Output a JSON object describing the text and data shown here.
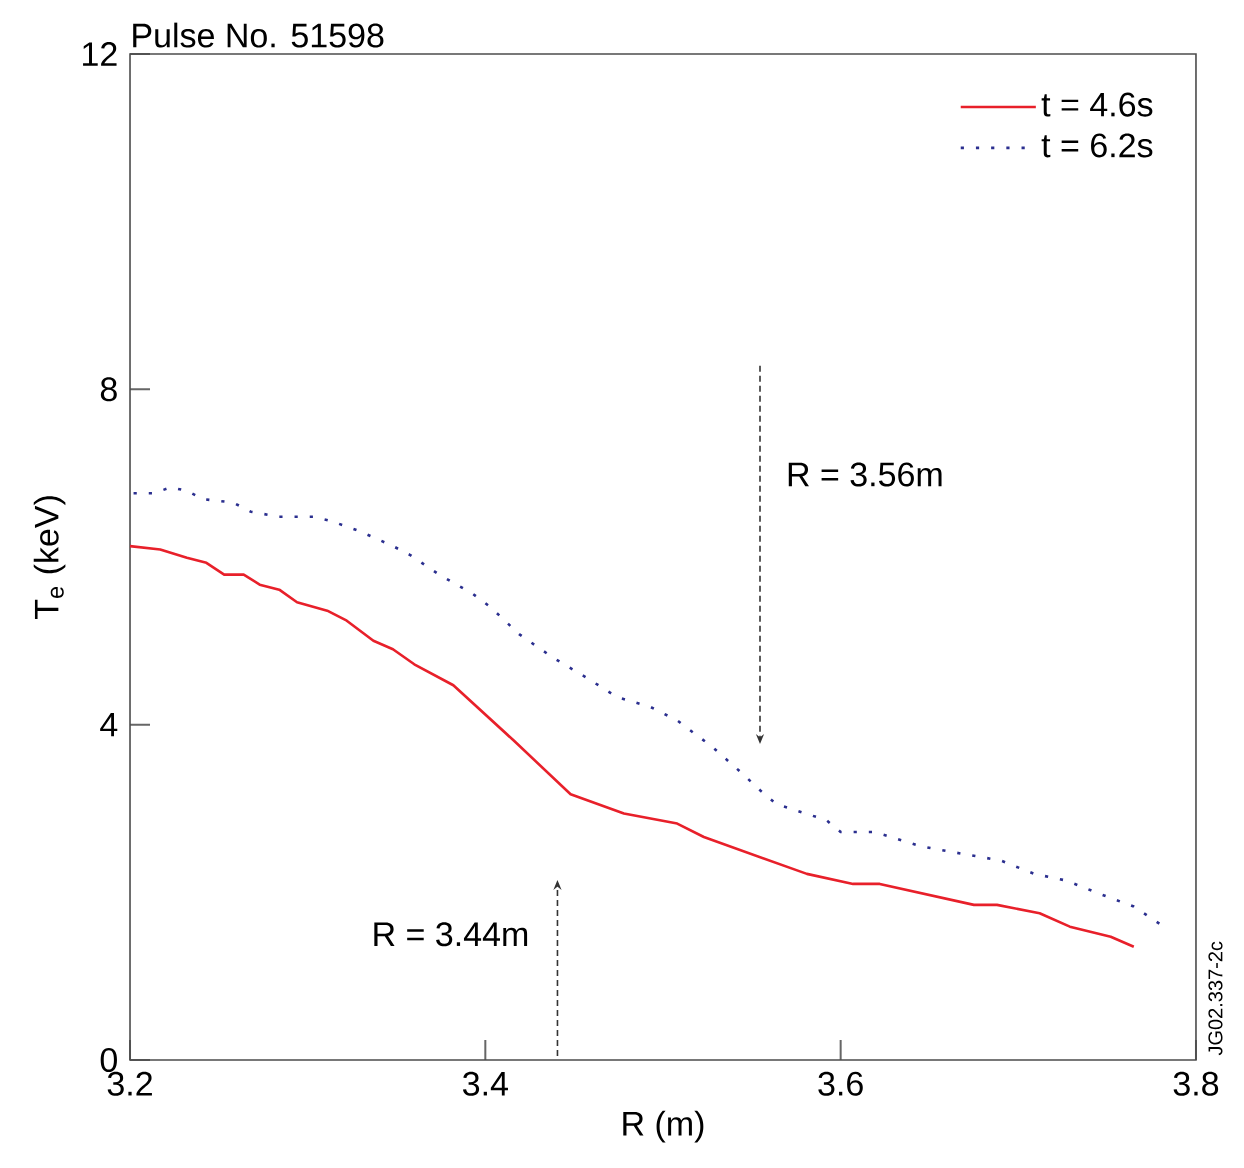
{
  "chart_data": {
    "type": "line",
    "title": "Pulse No. 51598",
    "xlabel": "R (m)",
    "ylabel": "T$_{e}$ (keV)",
    "xlim": [
      3.2,
      3.8
    ],
    "ylim": [
      0,
      12
    ],
    "xticks": [
      3.2,
      3.4,
      3.6,
      3.8
    ],
    "yticks": [
      0,
      4,
      8,
      12
    ],
    "grid": false,
    "legend": "top right",
    "marker": "none",
    "series": [
      {
        "name": "t = 4.6s",
        "color": "#e8202a",
        "line_style": "solid",
        "x": [
          3.2,
          3.217,
          3.232,
          3.243,
          3.253,
          3.264,
          3.273,
          3.284,
          3.294,
          3.311,
          3.322,
          3.337,
          3.348,
          3.36,
          3.382,
          3.416,
          3.448,
          3.478,
          3.508,
          3.523,
          3.581,
          3.607,
          3.622,
          3.675,
          3.688,
          3.712,
          3.729,
          3.752,
          3.765
        ],
        "values": [
          6.13,
          6.09,
          5.99,
          5.93,
          5.79,
          5.79,
          5.67,
          5.61,
          5.46,
          5.36,
          5.24,
          5.0,
          4.9,
          4.72,
          4.47,
          3.81,
          3.17,
          2.94,
          2.82,
          2.66,
          2.22,
          2.1,
          2.1,
          1.85,
          1.85,
          1.75,
          1.59,
          1.47,
          1.35
        ]
      },
      {
        "name": "t = 6.2s",
        "color": "#2b2f8f",
        "line_style": "dotted",
        "x": [
          3.202,
          3.213,
          3.223,
          3.232,
          3.241,
          3.258,
          3.268,
          3.284,
          3.303,
          3.313,
          3.329,
          3.348,
          3.358,
          3.374,
          3.393,
          3.403,
          3.419,
          3.438,
          3.457,
          3.474,
          3.493,
          3.508,
          3.528,
          3.545,
          3.555,
          3.564,
          3.592,
          3.6,
          3.619,
          3.645,
          3.663,
          3.69,
          3.709,
          3.727,
          3.746,
          3.765,
          3.782
        ],
        "values": [
          6.76,
          6.76,
          6.83,
          6.79,
          6.69,
          6.65,
          6.54,
          6.48,
          6.48,
          6.43,
          6.31,
          6.13,
          6.02,
          5.79,
          5.56,
          5.4,
          5.08,
          4.8,
          4.56,
          4.33,
          4.21,
          4.05,
          3.73,
          3.41,
          3.21,
          3.05,
          2.86,
          2.72,
          2.72,
          2.55,
          2.48,
          2.38,
          2.22,
          2.14,
          1.98,
          1.83,
          1.59
        ]
      }
    ],
    "annotations": [
      "R = 3.56m",
      "R = 3.44m",
      "JG02.337-2c"
    ]
  }
}
